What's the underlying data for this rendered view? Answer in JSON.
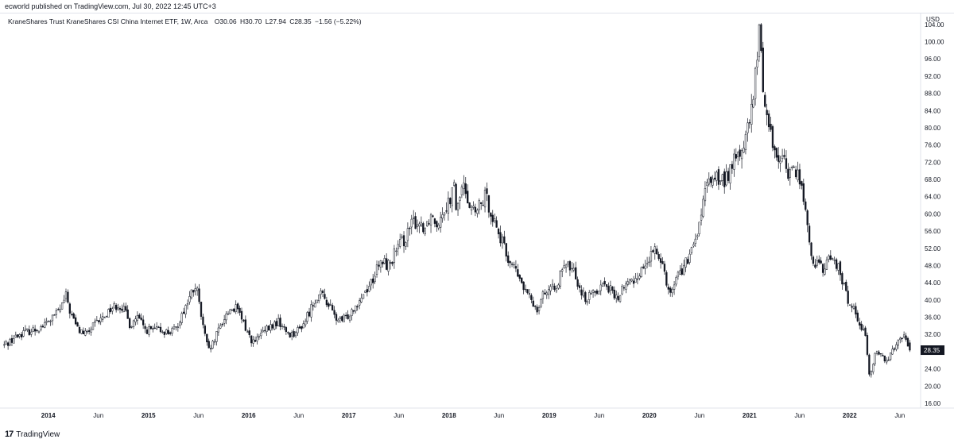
{
  "header": {
    "publisher": "ecworld published on TradingView.com, Jul 30, 2022 12:45 UTC+3"
  },
  "legend": {
    "symbol": "KraneShares Trust KraneShares CSI China Internet ETF, 1W, Arca",
    "open_label": "O",
    "open": "30.06",
    "high_label": "H",
    "high": "30.70",
    "low_label": "L",
    "low": "27.94",
    "close_label": "C",
    "close": "28.35",
    "change": "−1.56 (−5.22%)"
  },
  "footer": {
    "brand": "TradingView",
    "brand_mark": "17"
  },
  "colors": {
    "candle": "#131722",
    "axis_text": "#131722",
    "last_price_bg": "#131722",
    "grid": "#e0e3eb"
  },
  "chart_data": {
    "type": "candlestick",
    "currency_label": "USD",
    "last_price": "28.35",
    "y_ticks": [
      "104.00",
      "100.00",
      "96.00",
      "92.00",
      "88.00",
      "84.00",
      "80.00",
      "76.00",
      "72.00",
      "68.00",
      "64.00",
      "60.00",
      "56.00",
      "52.00",
      "48.00",
      "44.00",
      "40.00",
      "36.00",
      "32.00",
      "28.00",
      "24.00",
      "20.00",
      "16.00"
    ],
    "ylim": [
      16,
      106
    ],
    "x_ticks": [
      {
        "label": "2014",
        "t": 2014.0,
        "bold": true
      },
      {
        "label": "Jun",
        "t": 2014.5,
        "bold": false
      },
      {
        "label": "2015",
        "t": 2015.0,
        "bold": true
      },
      {
        "label": "Jun",
        "t": 2015.5,
        "bold": false
      },
      {
        "label": "2016",
        "t": 2016.0,
        "bold": true
      },
      {
        "label": "Jun",
        "t": 2016.5,
        "bold": false
      },
      {
        "label": "2017",
        "t": 2017.0,
        "bold": true
      },
      {
        "label": "Jun",
        "t": 2017.5,
        "bold": false
      },
      {
        "label": "2018",
        "t": 2018.0,
        "bold": true
      },
      {
        "label": "Jun",
        "t": 2018.5,
        "bold": false
      },
      {
        "label": "2019",
        "t": 2019.0,
        "bold": true
      },
      {
        "label": "Jun",
        "t": 2019.5,
        "bold": false
      },
      {
        "label": "2020",
        "t": 2020.0,
        "bold": true
      },
      {
        "label": "Jun",
        "t": 2020.5,
        "bold": false
      },
      {
        "label": "2021",
        "t": 2021.0,
        "bold": true
      },
      {
        "label": "Jun",
        "t": 2021.5,
        "bold": false
      },
      {
        "label": "2022",
        "t": 2022.0,
        "bold": true
      },
      {
        "label": "Jun",
        "t": 2022.5,
        "bold": false
      }
    ],
    "xlim": [
      2013.55,
      2022.7
    ],
    "close_path": [
      [
        2013.56,
        29.5
      ],
      [
        2013.65,
        31
      ],
      [
        2013.75,
        32.5
      ],
      [
        2013.85,
        33
      ],
      [
        2013.95,
        34
      ],
      [
        2014.05,
        36
      ],
      [
        2014.12,
        38
      ],
      [
        2014.18,
        41
      ],
      [
        2014.22,
        37
      ],
      [
        2014.3,
        33
      ],
      [
        2014.38,
        32
      ],
      [
        2014.45,
        34
      ],
      [
        2014.55,
        36
      ],
      [
        2014.62,
        38
      ],
      [
        2014.7,
        39
      ],
      [
        2014.75,
        38
      ],
      [
        2014.82,
        34
      ],
      [
        2014.88,
        36
      ],
      [
        2014.92,
        35
      ],
      [
        2014.97,
        33
      ],
      [
        2015.05,
        33
      ],
      [
        2015.12,
        33
      ],
      [
        2015.2,
        32.5
      ],
      [
        2015.27,
        33
      ],
      [
        2015.32,
        36
      ],
      [
        2015.38,
        39
      ],
      [
        2015.44,
        42
      ],
      [
        2015.48,
        43
      ],
      [
        2015.52,
        37
      ],
      [
        2015.56,
        32
      ],
      [
        2015.6,
        28
      ],
      [
        2015.65,
        30
      ],
      [
        2015.7,
        33
      ],
      [
        2015.76,
        36
      ],
      [
        2015.82,
        38
      ],
      [
        2015.88,
        38
      ],
      [
        2015.94,
        35
      ],
      [
        2016.02,
        31
      ],
      [
        2016.06,
        30
      ],
      [
        2016.12,
        32
      ],
      [
        2016.18,
        33
      ],
      [
        2016.24,
        34
      ],
      [
        2016.3,
        35
      ],
      [
        2016.36,
        33
      ],
      [
        2016.42,
        32
      ],
      [
        2016.5,
        33
      ],
      [
        2016.56,
        35
      ],
      [
        2016.62,
        38
      ],
      [
        2016.68,
        41
      ],
      [
        2016.74,
        41
      ],
      [
        2016.8,
        39
      ],
      [
        2016.86,
        36
      ],
      [
        2016.92,
        35
      ],
      [
        2016.98,
        36
      ],
      [
        2017.04,
        38
      ],
      [
        2017.1,
        40
      ],
      [
        2017.16,
        42
      ],
      [
        2017.22,
        44
      ],
      [
        2017.28,
        47
      ],
      [
        2017.34,
        49
      ],
      [
        2017.4,
        48
      ],
      [
        2017.46,
        51
      ],
      [
        2017.52,
        53
      ],
      [
        2017.58,
        55
      ],
      [
        2017.64,
        58
      ],
      [
        2017.7,
        58
      ],
      [
        2017.76,
        57
      ],
      [
        2017.82,
        60
      ],
      [
        2017.88,
        58
      ],
      [
        2017.94,
        61
      ],
      [
        2018.0,
        63
      ],
      [
        2018.05,
        66
      ],
      [
        2018.08,
        60
      ],
      [
        2018.12,
        66
      ],
      [
        2018.16,
        66
      ],
      [
        2018.2,
        63
      ],
      [
        2018.26,
        60
      ],
      [
        2018.32,
        62
      ],
      [
        2018.36,
        64
      ],
      [
        2018.4,
        62
      ],
      [
        2018.46,
        58
      ],
      [
        2018.52,
        54
      ],
      [
        2018.58,
        50
      ],
      [
        2018.64,
        48
      ],
      [
        2018.7,
        45
      ],
      [
        2018.76,
        42
      ],
      [
        2018.82,
        40
      ],
      [
        2018.88,
        38
      ],
      [
        2018.94,
        42
      ],
      [
        2019.02,
        42
      ],
      [
        2019.08,
        44
      ],
      [
        2019.14,
        47
      ],
      [
        2019.2,
        48
      ],
      [
        2019.26,
        46
      ],
      [
        2019.32,
        42
      ],
      [
        2019.38,
        40
      ],
      [
        2019.44,
        42
      ],
      [
        2019.5,
        43
      ],
      [
        2019.56,
        44
      ],
      [
        2019.62,
        42
      ],
      [
        2019.68,
        40
      ],
      [
        2019.74,
        43
      ],
      [
        2019.8,
        44
      ],
      [
        2019.86,
        45
      ],
      [
        2019.92,
        47
      ],
      [
        2019.98,
        49
      ],
      [
        2020.04,
        51
      ],
      [
        2020.1,
        51
      ],
      [
        2020.16,
        46
      ],
      [
        2020.2,
        41
      ],
      [
        2020.26,
        45
      ],
      [
        2020.32,
        47
      ],
      [
        2020.38,
        49
      ],
      [
        2020.44,
        52
      ],
      [
        2020.48,
        56
      ],
      [
        2020.52,
        60
      ],
      [
        2020.56,
        65
      ],
      [
        2020.6,
        68
      ],
      [
        2020.66,
        69
      ],
      [
        2020.72,
        67
      ],
      [
        2020.78,
        69
      ],
      [
        2020.84,
        72
      ],
      [
        2020.9,
        74
      ],
      [
        2020.96,
        77
      ],
      [
        2021.02,
        84
      ],
      [
        2021.06,
        92
      ],
      [
        2021.1,
        103
      ],
      [
        2021.13,
        92
      ],
      [
        2021.16,
        84
      ],
      [
        2021.2,
        80
      ],
      [
        2021.26,
        74
      ],
      [
        2021.32,
        73
      ],
      [
        2021.38,
        70
      ],
      [
        2021.44,
        70
      ],
      [
        2021.5,
        69
      ],
      [
        2021.55,
        62
      ],
      [
        2021.58,
        56
      ],
      [
        2021.62,
        50
      ],
      [
        2021.68,
        48
      ],
      [
        2021.74,
        47
      ],
      [
        2021.8,
        50
      ],
      [
        2021.86,
        49
      ],
      [
        2021.92,
        45
      ],
      [
        2021.98,
        40
      ],
      [
        2022.04,
        38
      ],
      [
        2022.1,
        35
      ],
      [
        2022.16,
        31
      ],
      [
        2022.2,
        22
      ],
      [
        2022.26,
        28
      ],
      [
        2022.32,
        27
      ],
      [
        2022.38,
        26
      ],
      [
        2022.44,
        29
      ],
      [
        2022.5,
        32
      ],
      [
        2022.56,
        31
      ],
      [
        2022.6,
        28.35
      ]
    ],
    "candle_count": 470
  }
}
